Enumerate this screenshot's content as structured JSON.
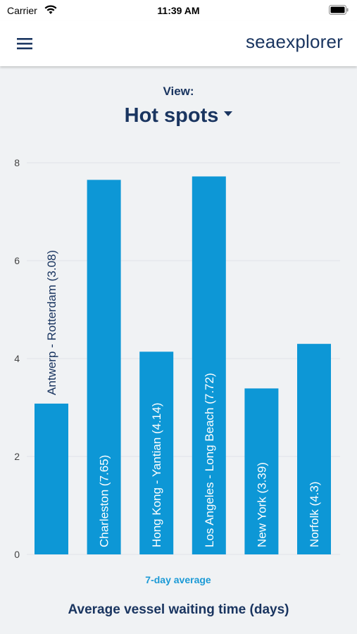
{
  "status_bar": {
    "carrier": "Carrier",
    "time": "11:39 AM"
  },
  "header": {
    "brand": "seaexplorer"
  },
  "view": {
    "label": "View:",
    "selected": "Hot spots"
  },
  "chart_data": {
    "type": "bar",
    "categories": [
      "Antwerp - Rotterdam",
      "Charleston",
      "Hong Kong - Yantian",
      "Los Angeles - Long Beach",
      "New York",
      "Norfolk"
    ],
    "values": [
      3.08,
      7.65,
      4.14,
      7.72,
      3.39,
      4.3
    ],
    "data_labels": [
      "Antwerp - Rotterdam (3.08)",
      "Charleston (7.65)",
      "Hong Kong - Yantian (4.14)",
      "Los Angeles - Long Beach (7.72)",
      "New York (3.39)",
      "Norfolk (4.3)"
    ],
    "yticks": [
      0,
      2,
      4,
      6,
      8
    ],
    "ylim": [
      0,
      8
    ],
    "grid": true,
    "xlabel": "7-day average",
    "title": "Average vessel waiting time (days)",
    "colors": {
      "bar": "#0d97d6",
      "label_outside": "#1a3560",
      "label_inside": "#ffffff",
      "xlabel": "#1b9ad6",
      "grid": "#dfe3e7"
    }
  }
}
